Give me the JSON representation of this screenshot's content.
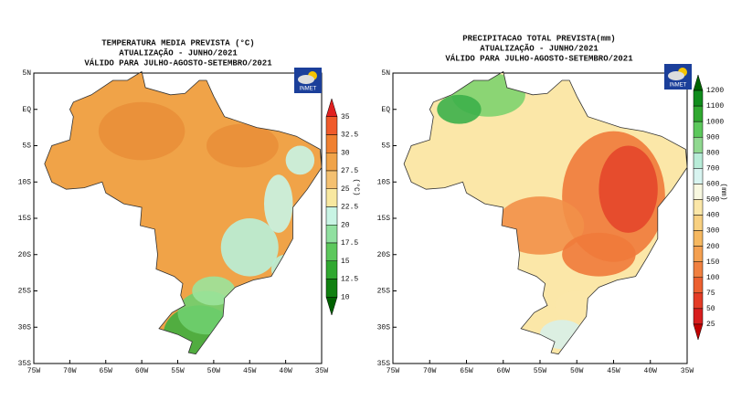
{
  "maps": [
    {
      "title_lines": [
        "TEMPERATURA MEDIA PREVISTA (°C)",
        "ATUALIZAÇÃO - JUNHO/2021",
        "VÁLIDO PARA JULHO-AGOSTO-SETEMBRO/2021"
      ],
      "logo": "INMET",
      "lat_labels": [
        "5N",
        "EQ",
        "5S",
        "10S",
        "15S",
        "20S",
        "25S",
        "30S",
        "35S"
      ],
      "lon_labels": [
        "75W",
        "70W",
        "65W",
        "60W",
        "55W",
        "50W",
        "45W",
        "40W",
        "35W"
      ],
      "colorbar": {
        "unit": "(°C)",
        "labels": [
          "35",
          "32.5",
          "30",
          "27.5",
          "25",
          "22.5",
          "20",
          "17.5",
          "15",
          "12.5",
          "10"
        ]
      }
    },
    {
      "title_lines": [
        "PRECIPITACAO TOTAL PREVISTA(mm)",
        "ATUALIZAÇÃO - JUNHO/2021",
        "VÁLIDO PARA JULHO-AGOSTO-SETEMBRO/2021"
      ],
      "logo": "INMET",
      "lat_labels": [
        "5N",
        "EQ",
        "5S",
        "10S",
        "15S",
        "20S",
        "25S",
        "30S",
        "35S"
      ],
      "lon_labels": [
        "75W",
        "70W",
        "65W",
        "60W",
        "55W",
        "50W",
        "45W",
        "40W",
        "35W"
      ],
      "colorbar": {
        "unit": "(mm)",
        "labels": [
          "1200",
          "1100",
          "1000",
          "900",
          "800",
          "700",
          "600",
          "500",
          "400",
          "300",
          "200",
          "150",
          "100",
          "75",
          "50",
          "25"
        ]
      }
    }
  ]
}
